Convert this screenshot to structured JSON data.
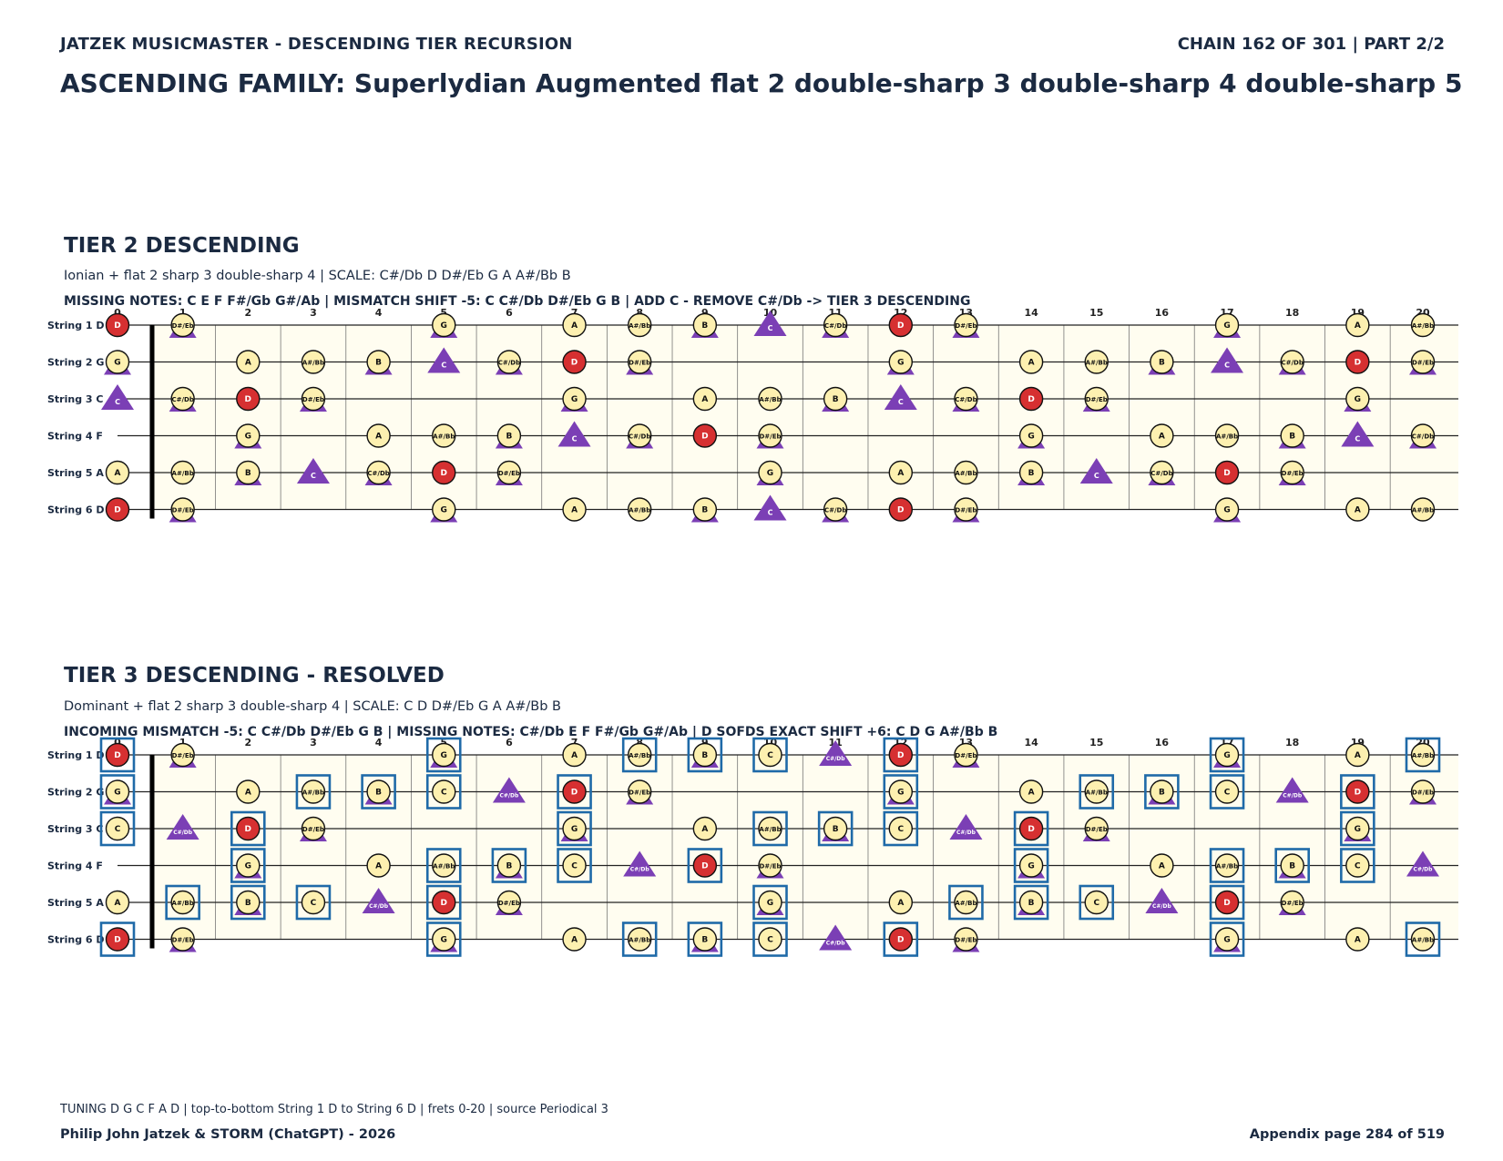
{
  "header": {
    "left": "JATZEK MUSICMASTER - DESCENDING TIER RECURSION",
    "right": "CHAIN 162 OF 301  |  PART 2/2"
  },
  "main_title": "ASCENDING FAMILY: Superlydian Augmented flat 2 double-sharp 3 double-sharp 4 double-sharp 5",
  "colors": {
    "root": "#d63031",
    "note_fill": "#fdf0b0",
    "triangle": "#7b3fb5",
    "highlight_box": "#1f6aa8",
    "board_bg": "#fffdf0"
  },
  "tiers": [
    {
      "title": "TIER 2 DESCENDING",
      "description": "Ionian + flat 2 sharp 3 double-sharp 4  |  SCALE: C#/Db D D#/Eb G A A#/Bb B",
      "info": "MISSING NOTES: C E F F#/Gb G#/Ab  |  MISMATCH SHIFT -5: C C#/Db D#/Eb G B  |  ADD C - REMOVE C#/Db -> TIER 3 DESCENDING",
      "scale": [
        "C#/Db",
        "D",
        "D#/Eb",
        "G",
        "A",
        "A#/Bb",
        "B"
      ],
      "triangles": [
        "C",
        "C#/Db",
        "D#/Eb",
        "G",
        "B"
      ],
      "boxes": [],
      "root": "D"
    },
    {
      "title": "TIER 3 DESCENDING - RESOLVED",
      "description": "Dominant + flat 2 sharp 3 double-sharp 4  |  SCALE: C D D#/Eb G A A#/Bb B",
      "info": "INCOMING MISMATCH -5: C C#/Db D#/Eb G B  |  MISSING NOTES: C#/Db E F F#/Gb G#/Ab  |  D SOFDS EXACT SHIFT +6: C D G A#/Bb B",
      "scale": [
        "C",
        "D",
        "D#/Eb",
        "G",
        "A",
        "A#/Bb",
        "B"
      ],
      "triangles": [
        "C#/Db",
        "D#/Eb",
        "G",
        "B"
      ],
      "boxes": [
        "C",
        "D",
        "G",
        "A#/Bb",
        "B"
      ],
      "root": "D"
    }
  ],
  "fretboard": {
    "strings": [
      {
        "label": "String 1 D",
        "open": "D"
      },
      {
        "label": "String 2 G",
        "open": "G"
      },
      {
        "label": "String 3 C",
        "open": "C"
      },
      {
        "label": "String 4 F",
        "open": "F"
      },
      {
        "label": "String 5 A",
        "open": "A"
      },
      {
        "label": "String 6 D",
        "open": "D"
      }
    ],
    "fret_numbers": [
      "0",
      "1",
      "2",
      "3",
      "4",
      "5",
      "6",
      "7",
      "8",
      "9",
      "10",
      "11",
      "12",
      "13",
      "14",
      "15",
      "16",
      "17",
      "18",
      "19",
      "20"
    ]
  },
  "footer": {
    "note": "TUNING D G C F A D | top-to-bottom String 1 D to String 6 D | frets 0-20 | source Periodical 3",
    "left": "Philip John Jatzek & STORM (ChatGPT) - 2026",
    "right": "Appendix page 284 of 519"
  }
}
